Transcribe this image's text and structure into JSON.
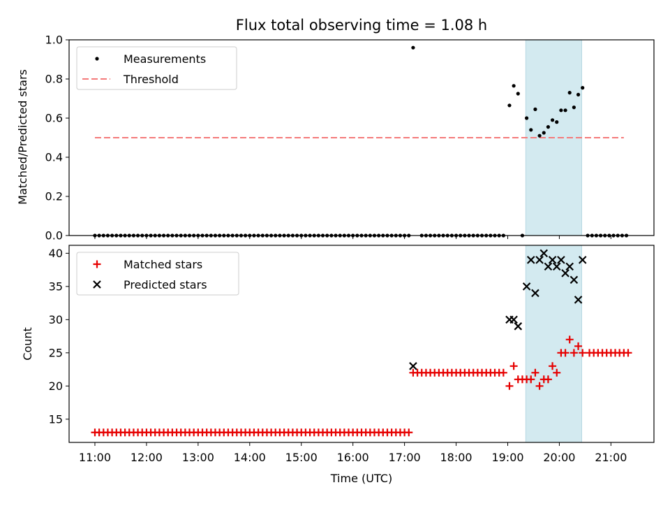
{
  "chart_data": [
    {
      "type": "scatter",
      "title": "Flux total observing time = 1.08 h",
      "ylabel": "Matched/Predicted stars",
      "xlabel": "",
      "xlim": [
        "10:30",
        "21:50"
      ],
      "ylim": [
        0,
        1
      ],
      "yticks": [
        "0.0",
        "0.2",
        "0.4",
        "0.6",
        "0.8",
        "1.0"
      ],
      "highlight_span": {
        "start": "19:21",
        "end": "20:26",
        "color": "#d3eaf0"
      },
      "legend": {
        "placement": "top-left",
        "entries": [
          "Measurements",
          "Threshold"
        ]
      },
      "threshold": {
        "name": "Threshold",
        "y": 0.5,
        "x_start": "11:00",
        "x_end": "21:15",
        "color": "#f47a7a",
        "style": "dashed"
      },
      "series": [
        {
          "name": "Measurements",
          "marker": "dot",
          "color": "#000000",
          "zero_run": {
            "start": "11:00",
            "end": "17:05",
            "step_minutes": 5,
            "y": 0
          },
          "x": [
            "17:10",
            "17:20",
            "17:25",
            "17:30",
            "17:35",
            "17:40",
            "17:45",
            "17:50",
            "17:55",
            "18:00",
            "18:05",
            "18:10",
            "18:15",
            "18:20",
            "18:25",
            "18:30",
            "18:35",
            "18:40",
            "18:45",
            "18:50",
            "18:55",
            "19:02",
            "19:07",
            "19:12",
            "19:17",
            "19:22",
            "19:27",
            "19:32",
            "19:37",
            "19:42",
            "19:47",
            "19:52",
            "19:57",
            "20:02",
            "20:07",
            "20:12",
            "20:17",
            "20:22",
            "20:27",
            "20:33",
            "20:38",
            "20:43",
            "20:48",
            "20:53",
            "20:58",
            "21:03",
            "21:08",
            "21:13",
            "21:18"
          ],
          "y": [
            0.96,
            0,
            0,
            0,
            0,
            0,
            0,
            0,
            0,
            0,
            0,
            0,
            0,
            0,
            0,
            0,
            0,
            0,
            0,
            0,
            0,
            0.665,
            0.765,
            0.725,
            0,
            0.6,
            0.54,
            0.645,
            0.51,
            0.525,
            0.555,
            0.59,
            0.58,
            0.64,
            0.64,
            0.73,
            0.655,
            0.72,
            0.755,
            0,
            0,
            0,
            0,
            0,
            0,
            0,
            0,
            0,
            0
          ]
        }
      ]
    },
    {
      "type": "scatter",
      "title": "",
      "ylabel": "Count",
      "xlabel": "Time (UTC)",
      "xlim": [
        "10:30",
        "21:50"
      ],
      "ylim": [
        11.5,
        41.2
      ],
      "yticks": [
        "15",
        "20",
        "25",
        "30",
        "35",
        "40"
      ],
      "xticks": [
        "11:00",
        "12:00",
        "13:00",
        "14:00",
        "15:00",
        "16:00",
        "17:00",
        "18:00",
        "19:00",
        "20:00",
        "21:00"
      ],
      "highlight_span": {
        "start": "19:21",
        "end": "20:26",
        "color": "#d3eaf0"
      },
      "legend": {
        "placement": "top-left",
        "entries": [
          "Matched stars",
          "Predicted stars"
        ]
      },
      "series": [
        {
          "name": "Matched stars",
          "marker": "plus",
          "color": "#e60000",
          "runs": [
            {
              "start": "11:00",
              "end": "17:05",
              "step_minutes": 5,
              "y": 13
            },
            {
              "start": "17:10",
              "end": "18:55",
              "step_minutes": 5,
              "y": 22
            },
            {
              "start": "20:35",
              "end": "21:20",
              "step_minutes": 5,
              "y": 25
            }
          ],
          "x": [
            "19:02",
            "19:07",
            "19:12",
            "19:17",
            "19:22",
            "19:27",
            "19:32",
            "19:37",
            "19:42",
            "19:47",
            "19:52",
            "19:57",
            "20:02",
            "20:07",
            "20:12",
            "20:17",
            "20:22",
            "20:27"
          ],
          "y": [
            20,
            23,
            21,
            21,
            21,
            21,
            22,
            20,
            21,
            21,
            23,
            22,
            25,
            25,
            27,
            25,
            26,
            25
          ]
        },
        {
          "name": "Predicted stars",
          "marker": "x",
          "color": "#000000",
          "x": [
            "17:10",
            "19:02",
            "19:07",
            "19:12",
            "19:22",
            "19:27",
            "19:32",
            "19:37",
            "19:42",
            "19:47",
            "19:52",
            "19:57",
            "20:02",
            "20:07",
            "20:12",
            "20:17",
            "20:22",
            "20:27"
          ],
          "y": [
            23,
            30,
            30,
            29,
            35,
            39,
            34,
            39,
            40,
            38,
            39,
            38,
            39,
            37,
            38,
            36,
            33,
            39
          ]
        }
      ]
    }
  ]
}
